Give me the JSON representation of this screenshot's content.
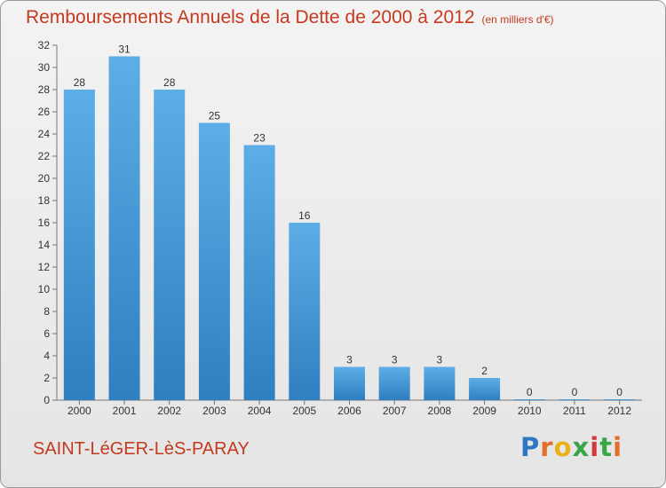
{
  "header": {
    "title": "Remboursements Annuels de la Dette de 2000 à 2012",
    "units": "(en milliers d'€)"
  },
  "footer": {
    "commune": "SAINT-LéGER-LèS-PARAY",
    "logo": "Proxiti"
  },
  "colors": {
    "title": "#c43a1f",
    "bar_light": "#5dade6",
    "bar_dark": "#2f7fc1",
    "background": "#ececec"
  },
  "chart_data": {
    "type": "bar",
    "title": "Remboursements Annuels de la Dette de 2000 à 2012",
    "xlabel": "",
    "ylabel": "",
    "categories": [
      "2000",
      "2001",
      "2002",
      "2003",
      "2004",
      "2005",
      "2006",
      "2007",
      "2008",
      "2009",
      "2010",
      "2011",
      "2012"
    ],
    "values": [
      28,
      31,
      28,
      25,
      23,
      16,
      3,
      3,
      3,
      2,
      0,
      0,
      0
    ],
    "ylim": [
      0,
      32
    ],
    "yticks": [
      0,
      2,
      4,
      6,
      8,
      10,
      12,
      14,
      16,
      18,
      20,
      22,
      24,
      26,
      28,
      30,
      32
    ],
    "grid": false,
    "data_labels": true
  }
}
